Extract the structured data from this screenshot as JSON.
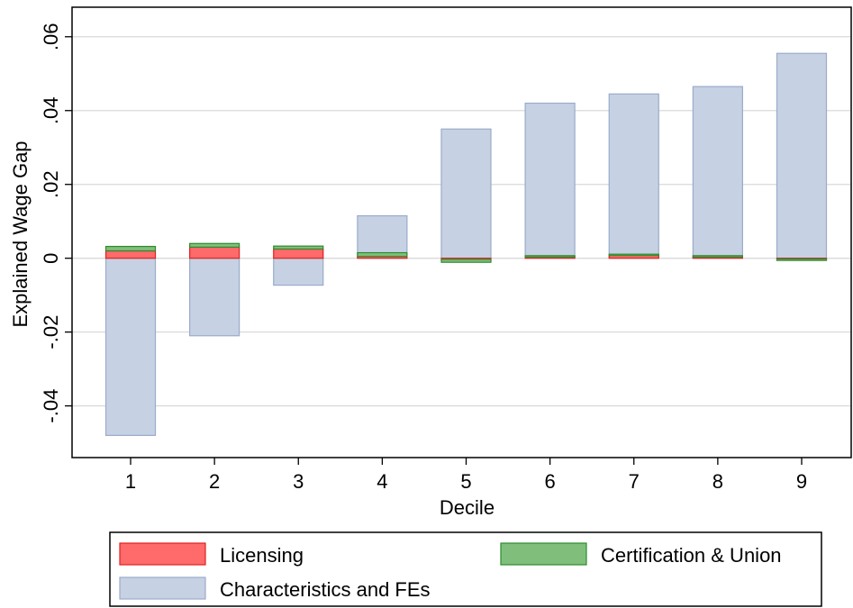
{
  "chart_data": {
    "type": "bar",
    "stacked": true,
    "xlabel": "Decile",
    "ylabel": "Explained Wage Gap",
    "categories": [
      "1",
      "2",
      "3",
      "4",
      "5",
      "6",
      "7",
      "8",
      "9"
    ],
    "ylim": [
      -0.054,
      0.068
    ],
    "yticks": [
      {
        "value": -0.04,
        "label": "-.04"
      },
      {
        "value": -0.02,
        "label": "-.02"
      },
      {
        "value": 0,
        "label": "0"
      },
      {
        "value": 0.02,
        "label": ".02"
      },
      {
        "value": 0.04,
        "label": ".04"
      },
      {
        "value": 0.06,
        "label": ".06"
      }
    ],
    "grid": true,
    "legend_position": "bottom",
    "series": [
      {
        "name": "Licensing",
        "color": "#ff6a6a",
        "edge": "#e02020",
        "values": [
          0.002,
          0.003,
          0.0025,
          0.0005,
          -0.0003,
          0.0005,
          0.0008,
          0.0005,
          -0.0002
        ]
      },
      {
        "name": "Certification & Union",
        "color": "#7fbf7b",
        "edge": "#2e8b2e",
        "values": [
          0.0012,
          0.001,
          0.0008,
          0.001,
          -0.0008,
          0.0002,
          0.0003,
          0.0002,
          -0.0004
        ]
      },
      {
        "name": "Characteristics and FEs",
        "color": "#c6d1e3",
        "edge": "#9aaccb",
        "values": [
          -0.048,
          -0.021,
          -0.0073,
          0.0115,
          0.035,
          0.042,
          0.0445,
          0.0465,
          0.0555
        ]
      }
    ]
  }
}
